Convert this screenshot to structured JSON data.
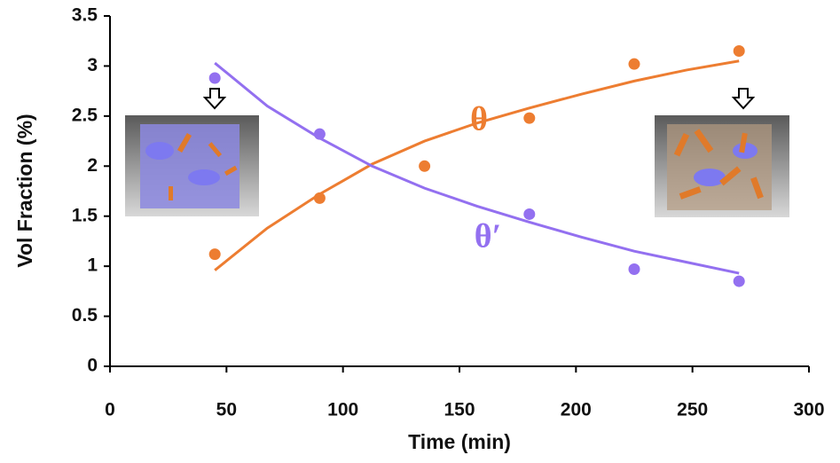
{
  "chart_data": {
    "type": "scatter",
    "xlabel": "Time (min)",
    "ylabel": "Vol Fraction (%)",
    "xlim": [
      0,
      300
    ],
    "xticks": [
      0,
      50,
      100,
      150,
      200,
      250,
      300
    ],
    "ylim": [
      0,
      3.5
    ],
    "yticks": [
      0,
      0.5,
      1,
      1.5,
      2,
      2.5,
      3,
      3.5
    ],
    "series": [
      {
        "name": "θ",
        "color": "#ed7d31",
        "x": [
          45,
          90,
          135,
          180,
          225,
          270
        ],
        "values": [
          1.12,
          1.68,
          2.0,
          2.48,
          3.02,
          3.15
        ],
        "fit_x": [
          45,
          67.5,
          90,
          112.5,
          135,
          157.5,
          180,
          202.5,
          225,
          247.5,
          270
        ],
        "fit_values": [
          0.96,
          1.38,
          1.72,
          2.02,
          2.25,
          2.43,
          2.58,
          2.72,
          2.85,
          2.96,
          3.05
        ]
      },
      {
        "name": "θ′",
        "color": "#9370f0",
        "x": [
          45,
          90,
          180,
          225,
          270
        ],
        "values": [
          2.88,
          2.32,
          1.52,
          0.97,
          0.85
        ],
        "fit_x": [
          45,
          67.5,
          90,
          112.5,
          135,
          157.5,
          180,
          202.5,
          225,
          247.5,
          270
        ],
        "fit_values": [
          3.03,
          2.6,
          2.28,
          2.0,
          1.78,
          1.6,
          1.44,
          1.29,
          1.15,
          1.04,
          0.93
        ]
      }
    ]
  }
}
